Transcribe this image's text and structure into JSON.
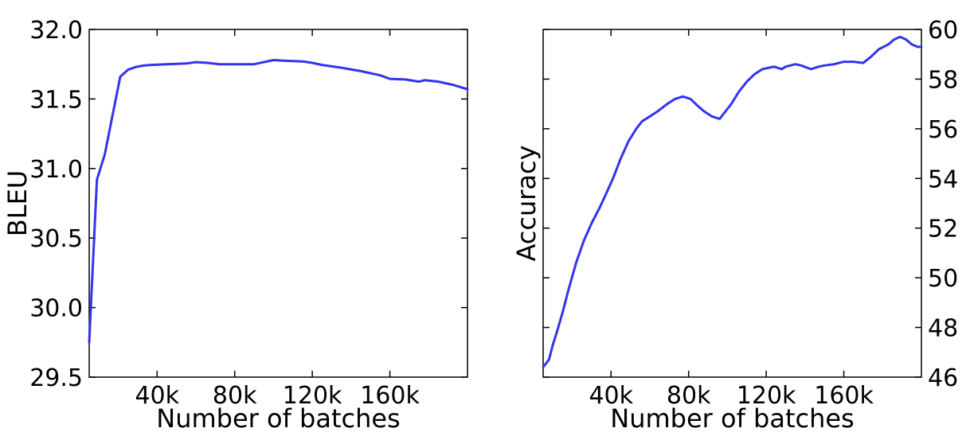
{
  "chart_data": [
    {
      "type": "line",
      "title": "",
      "xlabel": "Number of batches",
      "ylabel": "BLEU",
      "xlim": [
        5000,
        200000
      ],
      "ylim": [
        29.5,
        32.0
      ],
      "xticks": [
        40000,
        80000,
        120000,
        160000
      ],
      "xtick_labels": [
        "40k",
        "80k",
        "120k",
        "160k"
      ],
      "yticks": [
        29.5,
        30.0,
        30.5,
        31.0,
        31.5,
        32.0
      ],
      "ytick_labels": [
        "29.5",
        "30.0",
        "30.5",
        "31.0",
        "31.5",
        "32.0"
      ],
      "y_axis_side": "left",
      "grid": false,
      "color": "#3333ee",
      "series": [
        {
          "x": [
            5000,
            9000,
            13000,
            17000,
            21000,
            25000,
            29000,
            33000,
            37000,
            45000,
            55000,
            60000,
            66000,
            72000,
            80000,
            90000,
            100000,
            105000,
            115000,
            120000,
            125000,
            135000,
            145000,
            155000,
            160000,
            168000,
            175000,
            178000,
            185000,
            193000,
            200000
          ],
          "y": [
            29.75,
            30.92,
            31.1,
            31.38,
            31.66,
            31.71,
            31.73,
            31.74,
            31.745,
            31.75,
            31.755,
            31.765,
            31.76,
            31.75,
            31.75,
            31.75,
            31.78,
            31.775,
            31.77,
            31.76,
            31.745,
            31.725,
            31.7,
            31.67,
            31.645,
            31.64,
            31.625,
            31.635,
            31.625,
            31.6,
            31.57
          ]
        }
      ]
    },
    {
      "type": "line",
      "title": "",
      "xlabel": "Number of batches",
      "ylabel": "Accuracy",
      "xlim": [
        5000,
        200000
      ],
      "ylim": [
        46,
        60
      ],
      "xticks": [
        40000,
        80000,
        120000,
        160000
      ],
      "xtick_labels": [
        "40k",
        "80k",
        "120k",
        "160k"
      ],
      "yticks": [
        46,
        48,
        50,
        52,
        54,
        56,
        58,
        60
      ],
      "ytick_labels": [
        "46",
        "48",
        "50",
        "52",
        "54",
        "56",
        "58",
        "60"
      ],
      "y_axis_side": "right",
      "grid": false,
      "color": "#3333ee",
      "series": [
        {
          "x": [
            5000,
            8000,
            10000,
            12000,
            15000,
            18000,
            22000,
            26000,
            30000,
            34000,
            37000,
            41000,
            45000,
            49000,
            53000,
            56000,
            60000,
            64000,
            69000,
            73000,
            77000,
            81000,
            85000,
            88000,
            92000,
            96000,
            98000,
            102000,
            106000,
            110000,
            114000,
            118000,
            124000,
            128000,
            130000,
            135000,
            138000,
            143000,
            147000,
            150000,
            155000,
            160000,
            165000,
            170000,
            174000,
            178000,
            183000,
            186000,
            189000,
            192000,
            195000,
            198000,
            200000
          ],
          "y": [
            46.4,
            46.7,
            47.3,
            47.8,
            48.6,
            49.5,
            50.6,
            51.5,
            52.2,
            52.8,
            53.3,
            54.0,
            54.8,
            55.5,
            56.0,
            56.3,
            56.5,
            56.7,
            57.0,
            57.2,
            57.3,
            57.2,
            56.9,
            56.7,
            56.5,
            56.4,
            56.6,
            57.0,
            57.5,
            57.9,
            58.2,
            58.4,
            58.5,
            58.4,
            58.5,
            58.6,
            58.55,
            58.4,
            58.5,
            58.55,
            58.6,
            58.7,
            58.7,
            58.65,
            58.9,
            59.2,
            59.4,
            59.6,
            59.7,
            59.6,
            59.4,
            59.3,
            59.3
          ]
        }
      ]
    }
  ]
}
